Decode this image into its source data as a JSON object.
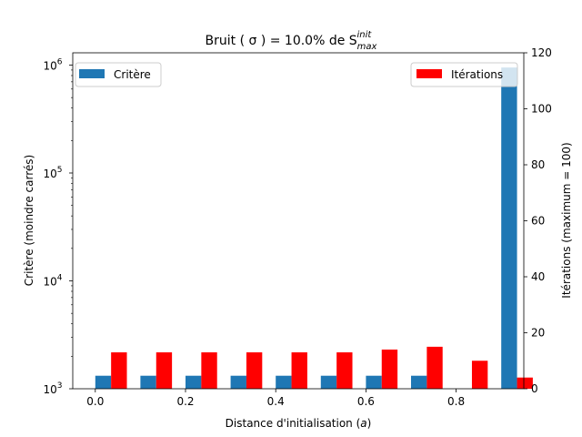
{
  "chart_data": {
    "type": "bar",
    "title": "Bruit ( σ ) = 10.0% de S",
    "title_sup": "init",
    "title_sub": "max",
    "xlabel_main": "Distance d'initialisation (",
    "xlabel_italic": "a",
    "xlabel_end": ")",
    "ylabel_left": "Critère (moindre carrés)",
    "ylabel_right": "Itérations (maximum = 100)",
    "x": [
      0.0,
      0.1,
      0.2,
      0.3,
      0.4,
      0.5,
      0.6,
      0.7,
      0.8,
      0.9
    ],
    "xticks": [
      "0.0",
      "0.2",
      "0.4",
      "0.6",
      "0.8"
    ],
    "xlim": [
      -0.05,
      0.95
    ],
    "left_axis": {
      "scale": "log",
      "ylim": [
        1000,
        1300000
      ],
      "ticks": [
        {
          "base": "10",
          "exp": "3"
        },
        {
          "base": "10",
          "exp": "4"
        },
        {
          "base": "10",
          "exp": "5"
        },
        {
          "base": "10",
          "exp": "6"
        }
      ]
    },
    "right_axis": {
      "scale": "linear",
      "ylim": [
        0,
        120
      ],
      "ticks": [
        "0",
        "20",
        "40",
        "60",
        "80",
        "100",
        "120"
      ]
    },
    "series": [
      {
        "name": "Critère",
        "axis": "left",
        "color": "#1f77b4",
        "values": [
          1320,
          1320,
          1320,
          1320,
          1320,
          1320,
          1320,
          1320,
          null,
          950000
        ]
      },
      {
        "name": "Itérations",
        "axis": "right",
        "color": "#ff0000",
        "values": [
          13,
          13,
          13,
          13,
          13,
          13,
          14,
          15,
          10,
          4
        ]
      }
    ],
    "legend": [
      {
        "placement": "upper-left",
        "label": "Critère",
        "color": "#1f77b4"
      },
      {
        "placement": "upper-right",
        "label": "Itérations",
        "color": "#ff0000"
      }
    ],
    "grid": false
  }
}
